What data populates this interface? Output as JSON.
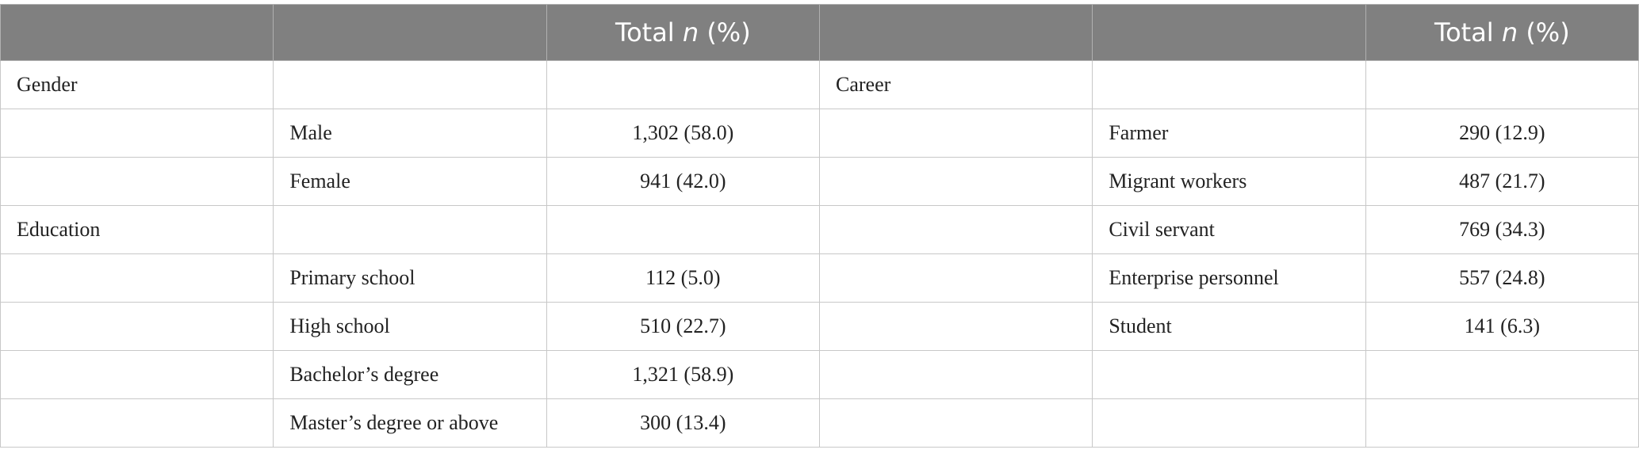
{
  "table": {
    "header": [
      [
        "Total ",
        "n",
        " (%)"
      ],
      [
        "Total ",
        "n",
        " (%)"
      ]
    ],
    "rows": [
      {
        "left": {
          "group": "Gender"
        },
        "right": {
          "group": "Career"
        }
      },
      {
        "left": {
          "item": "Male",
          "value": "1,302 (58.0)"
        },
        "right": {
          "item": "Farmer",
          "value": "290 (12.9)"
        }
      },
      {
        "left": {
          "item": "Female",
          "value": "941 (42.0)"
        },
        "right": {
          "item": "Migrant workers",
          "value": "487 (21.7)"
        }
      },
      {
        "left": {
          "group": "Education"
        },
        "right": {
          "item": "Civil servant",
          "value": "769 (34.3)"
        }
      },
      {
        "left": {
          "item": "Primary school",
          "value": "112 (5.0)"
        },
        "right": {
          "item": "Enterprise personnel",
          "value": "557 (24.8)"
        }
      },
      {
        "left": {
          "item": "High school",
          "value": "510 (22.7)"
        },
        "right": {
          "item": "Student",
          "value": "141 (6.3)"
        }
      },
      {
        "left": {
          "item": "Bachelor’s degree",
          "value": "1,321 (58.9)"
        },
        "right": {}
      },
      {
        "left": {
          "item": "Master’s degree or above",
          "value": "300 (13.4)"
        },
        "right": {}
      }
    ]
  }
}
